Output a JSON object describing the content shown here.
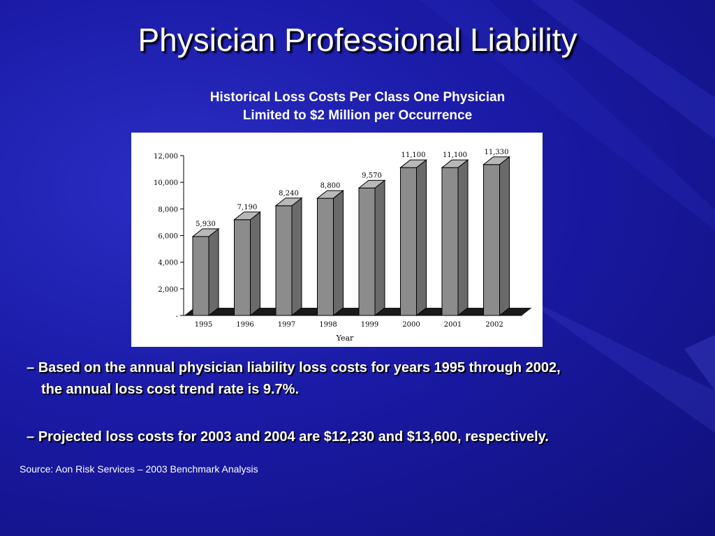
{
  "slide": {
    "title": "Physician Professional Liability",
    "subtitle_line1": "Historical Loss Costs Per Class One Physician",
    "subtitle_line2": "Limited to $2 Million per Occurrence",
    "bullets": [
      {
        "dash": "– ",
        "line1": "Based on the annual physician liability loss costs for years 1995 through 2002,",
        "line2": "the annual loss cost trend rate is 9.7%."
      },
      {
        "dash": "– ",
        "line1": "Projected loss costs for 2003 and 2004 are $12,230 and $13,600, respectively."
      }
    ],
    "source": "Source:  Aon Risk Services – 2003 Benchmark Analysis"
  },
  "colors": {
    "background": "#1a1aa6",
    "bar_front": "#8c8c8c",
    "bar_side": "#6a6a6a",
    "bar_top": "#b8b8b8",
    "floor": "#1a1a1a"
  },
  "chart_data": {
    "type": "bar",
    "categories": [
      "1995",
      "1996",
      "1997",
      "1998",
      "1999",
      "2000",
      "2001",
      "2002"
    ],
    "values": [
      5930,
      7190,
      8240,
      8800,
      9570,
      11100,
      11100,
      11330
    ],
    "value_labels": [
      "5,930",
      "7,190",
      "8,240",
      "8,800",
      "9,570",
      "11,100",
      "11,100",
      "11,330"
    ],
    "xlabel": "Year",
    "ylabel": "",
    "ylim": [
      0,
      12000
    ],
    "yticks": [
      0,
      2000,
      4000,
      6000,
      8000,
      10000,
      12000
    ],
    "ytick_labels": [
      "-",
      "2,000",
      "4,000",
      "6,000",
      "8,000",
      "10,000",
      "12,000"
    ],
    "style": "3d-bar"
  }
}
